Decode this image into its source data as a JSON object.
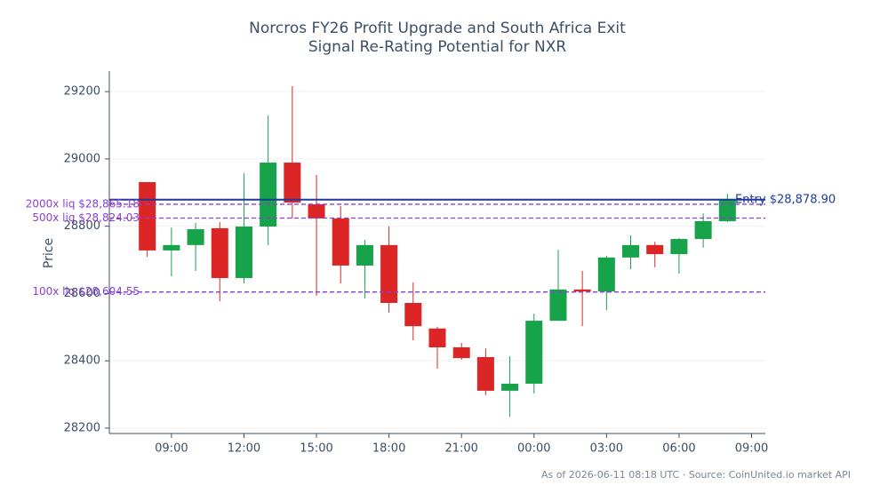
{
  "chart_data": {
    "type": "candlestick",
    "title": [
      "Norcros FY26 Profit Upgrade and South Africa Exit",
      "Signal Re-Rating Potential for NXR"
    ],
    "ylabel": "Price",
    "footer": "As of 2026-06-11 08:18 UTC · Source: CoinUnited.io market API",
    "x": [
      8,
      9,
      10,
      11,
      12,
      13,
      14,
      15,
      16,
      17,
      18,
      19,
      20,
      21,
      22,
      23,
      24,
      25,
      26,
      27,
      28,
      29,
      30,
      31,
      32
    ],
    "open": [
      28931,
      28728,
      28744,
      28794,
      28646,
      28799,
      28989,
      28865,
      28823,
      28683,
      28744,
      28572,
      28496,
      28440,
      28411,
      28311,
      28332,
      28519,
      28612,
      28606,
      28707,
      28744,
      28717,
      28762,
      28815
    ],
    "high": [
      28931,
      28796,
      28810,
      28812,
      28957,
      29129,
      29216,
      28952,
      28860,
      28759,
      28799,
      28633,
      28501,
      28453,
      28437,
      28414,
      28540,
      28730,
      28667,
      28712,
      28773,
      28754,
      28765,
      28838,
      28897
    ],
    "low": [
      28709,
      28651,
      28667,
      28577,
      28630,
      28744,
      28823,
      28593,
      28630,
      28585,
      28543,
      28461,
      28377,
      28403,
      28298,
      28234,
      28303,
      28519,
      28503,
      28551,
      28672,
      28678,
      28659,
      28736,
      28812
    ],
    "close": [
      28728,
      28744,
      28791,
      28646,
      28799,
      28989,
      28870,
      28823,
      28683,
      28744,
      28572,
      28503,
      28440,
      28408,
      28311,
      28332,
      28519,
      28612,
      28606,
      28707,
      28744,
      28717,
      28762,
      28815,
      28881
    ],
    "up_color": "#16a34a",
    "down_color": "#dc2626",
    "xlim": [
      6.43,
      33.57
    ],
    "xticks": [
      {
        "value": 9,
        "label": "09:00"
      },
      {
        "value": 12,
        "label": "12:00"
      },
      {
        "value": 15,
        "label": "15:00"
      },
      {
        "value": 18,
        "label": "18:00"
      },
      {
        "value": 21,
        "label": "21:00"
      },
      {
        "value": 24,
        "label": "00:00"
      },
      {
        "value": 27,
        "label": "03:00"
      },
      {
        "value": 30,
        "label": "06:00"
      },
      {
        "value": 33,
        "label": "09:00"
      }
    ],
    "ylim": [
      28184,
      29261
    ],
    "yticks": [
      28200,
      28400,
      28600,
      28800,
      29000,
      29200
    ],
    "grid": true,
    "hlines": [
      {
        "value": 28878.9,
        "label": "Entry $28,878.90",
        "color": "#1e3a9a",
        "style": "solid"
      },
      {
        "value": 28865.18,
        "label": "2000x liq $28,865.18",
        "color": "#8b3fd9",
        "style": "dashed"
      },
      {
        "value": 28824.03,
        "label": "500x liq $28,824.03",
        "color": "#8b3fd9",
        "style": "dashed"
      },
      {
        "value": 28604.55,
        "label": "100x liq $28,604.55",
        "color": "#8b3fd9",
        "style": "dashed"
      }
    ]
  }
}
